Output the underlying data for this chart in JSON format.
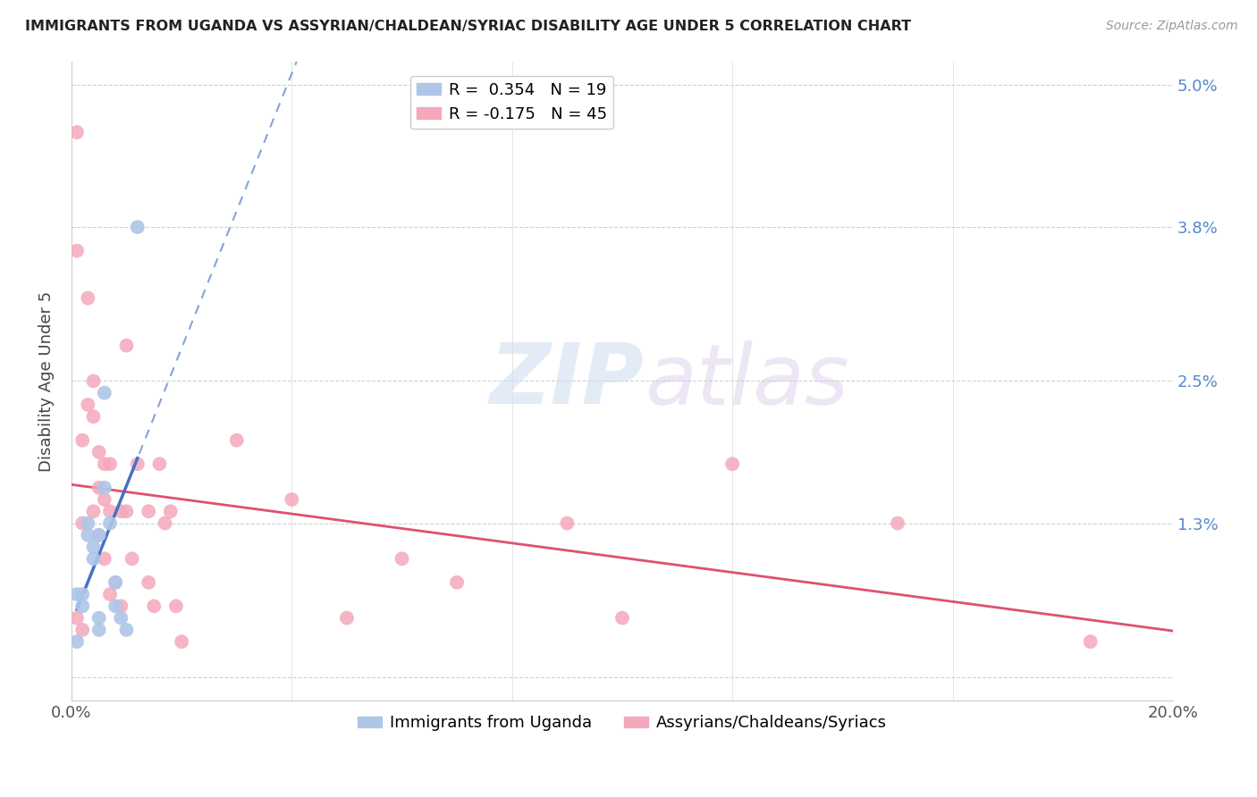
{
  "title": "IMMIGRANTS FROM UGANDA VS ASSYRIAN/CHALDEAN/SYRIAC DISABILITY AGE UNDER 5 CORRELATION CHART",
  "source": "Source: ZipAtlas.com",
  "ylabel": "Disability Age Under 5",
  "xlim": [
    0.0,
    0.2
  ],
  "ylim": [
    -0.002,
    0.052
  ],
  "yticks": [
    0.0,
    0.013,
    0.025,
    0.038,
    0.05
  ],
  "ytick_labels": [
    "",
    "1.3%",
    "2.5%",
    "3.8%",
    "5.0%"
  ],
  "xtick_labels": [
    "0.0%",
    "20.0%"
  ],
  "xticks": [
    0.0,
    0.2
  ],
  "legend_entries": [
    {
      "label": "R =  0.354   N = 19",
      "color": "#aec6e8"
    },
    {
      "label": "R = -0.175   N = 45",
      "color": "#f4a8bb"
    }
  ],
  "legend_bottom": [
    {
      "label": "Immigrants from Uganda",
      "color": "#aec6e8"
    },
    {
      "label": "Assyrians/Chaldeans/Syriacs",
      "color": "#f4a8bb"
    }
  ],
  "watermark_zip": "ZIP",
  "watermark_atlas": "atlas",
  "blue_scatter_x": [
    0.001,
    0.001,
    0.002,
    0.002,
    0.003,
    0.003,
    0.004,
    0.004,
    0.005,
    0.005,
    0.005,
    0.006,
    0.006,
    0.007,
    0.008,
    0.008,
    0.009,
    0.01,
    0.012
  ],
  "blue_scatter_y": [
    0.003,
    0.007,
    0.007,
    0.006,
    0.013,
    0.012,
    0.011,
    0.01,
    0.012,
    0.005,
    0.004,
    0.024,
    0.016,
    0.013,
    0.008,
    0.006,
    0.005,
    0.004,
    0.038
  ],
  "pink_scatter_x": [
    0.001,
    0.001,
    0.001,
    0.002,
    0.002,
    0.002,
    0.003,
    0.003,
    0.004,
    0.004,
    0.004,
    0.005,
    0.005,
    0.005,
    0.006,
    0.006,
    0.006,
    0.007,
    0.007,
    0.007,
    0.008,
    0.009,
    0.009,
    0.01,
    0.01,
    0.011,
    0.012,
    0.014,
    0.014,
    0.015,
    0.016,
    0.017,
    0.018,
    0.019,
    0.02,
    0.03,
    0.04,
    0.05,
    0.06,
    0.07,
    0.09,
    0.1,
    0.12,
    0.15,
    0.185
  ],
  "pink_scatter_y": [
    0.046,
    0.036,
    0.005,
    0.02,
    0.013,
    0.004,
    0.032,
    0.023,
    0.025,
    0.022,
    0.014,
    0.019,
    0.016,
    0.012,
    0.018,
    0.015,
    0.01,
    0.018,
    0.014,
    0.007,
    0.008,
    0.014,
    0.006,
    0.028,
    0.014,
    0.01,
    0.018,
    0.014,
    0.008,
    0.006,
    0.018,
    0.013,
    0.014,
    0.006,
    0.003,
    0.02,
    0.015,
    0.005,
    0.01,
    0.008,
    0.013,
    0.005,
    0.018,
    0.013,
    0.003
  ],
  "blue_line_color": "#4472c4",
  "pink_line_color": "#e05070",
  "dot_blue_color": "#aec6e8",
  "dot_pink_color": "#f4a8bb",
  "grid_color": "#d0d0d0",
  "background_color": "#ffffff",
  "blue_trend_x_solid_start": 0.001,
  "blue_trend_x_solid_end": 0.012,
  "blue_trend_x_dash_end": 0.05,
  "pink_trend_x_start": 0.0,
  "pink_trend_x_end": 0.2
}
